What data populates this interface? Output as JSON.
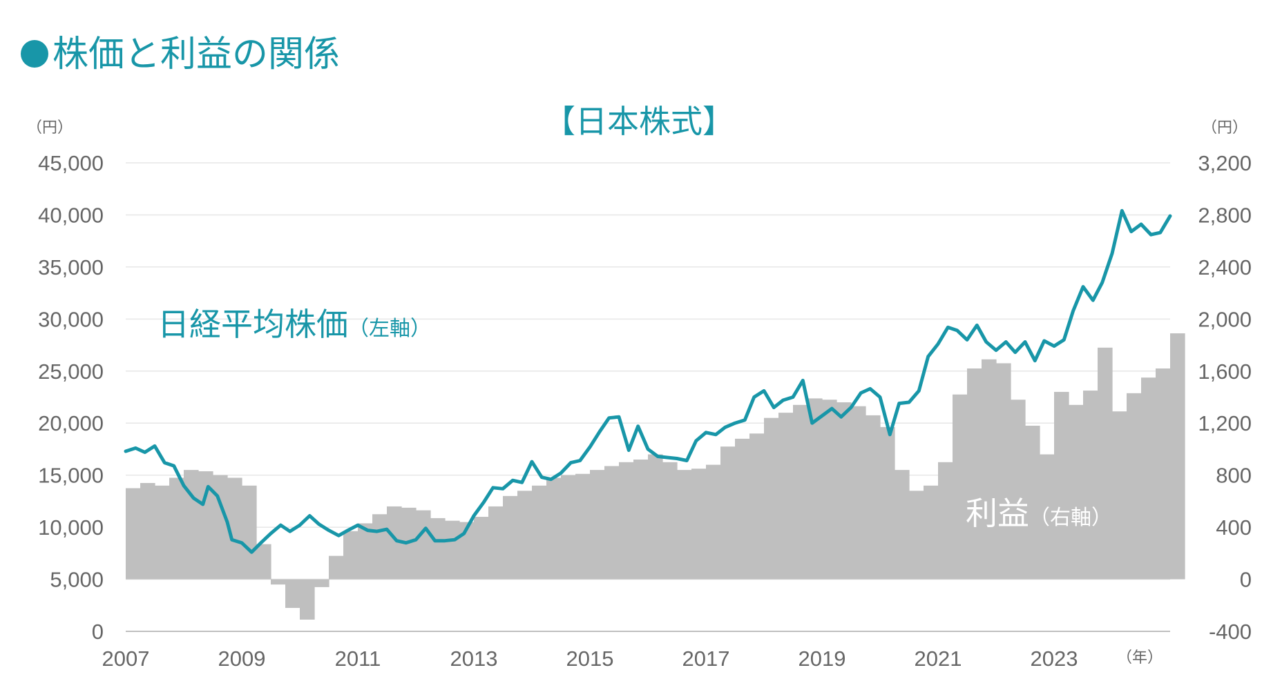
{
  "header": {
    "title": "株価と利益の関係"
  },
  "chart_data": {
    "type": "bar+line",
    "title": "【日本株式】",
    "left_axis": {
      "unit": "（円）",
      "ylim": [
        0,
        45000
      ],
      "ticks": [
        "0",
        "5,000",
        "10,000",
        "15,000",
        "20,000",
        "25,000",
        "30,000",
        "35,000",
        "40,000",
        "45,000"
      ]
    },
    "right_axis": {
      "unit": "（円）",
      "ylim": [
        -400,
        3200
      ],
      "ticks": [
        "-400",
        "0",
        "400",
        "800",
        "1,200",
        "1,600",
        "2,000",
        "2,400",
        "2,800",
        "3,200"
      ]
    },
    "x_axis": {
      "unit": "（年）",
      "range": [
        2007,
        2025
      ],
      "ticks": [
        "2007",
        "2009",
        "2011",
        "2013",
        "2015",
        "2017",
        "2019",
        "2021",
        "2023"
      ]
    },
    "grid": "horizontal",
    "series": [
      {
        "name": "日経平均株価",
        "axis_note": "（左軸）",
        "type": "line",
        "color": "#1896a8",
        "points": [
          [
            2007.0,
            17300
          ],
          [
            2007.17,
            17600
          ],
          [
            2007.33,
            17200
          ],
          [
            2007.5,
            17800
          ],
          [
            2007.67,
            16200
          ],
          [
            2007.83,
            15900
          ],
          [
            2008.0,
            14000
          ],
          [
            2008.17,
            12800
          ],
          [
            2008.33,
            12200
          ],
          [
            2008.42,
            13900
          ],
          [
            2008.58,
            13000
          ],
          [
            2008.75,
            10500
          ],
          [
            2008.83,
            8800
          ],
          [
            2009.0,
            8500
          ],
          [
            2009.17,
            7600
          ],
          [
            2009.33,
            8500
          ],
          [
            2009.5,
            9400
          ],
          [
            2009.67,
            10200
          ],
          [
            2009.83,
            9600
          ],
          [
            2010.0,
            10200
          ],
          [
            2010.17,
            11100
          ],
          [
            2010.33,
            10300
          ],
          [
            2010.5,
            9700
          ],
          [
            2010.67,
            9200
          ],
          [
            2010.83,
            9700
          ],
          [
            2011.0,
            10200
          ],
          [
            2011.17,
            9700
          ],
          [
            2011.33,
            9600
          ],
          [
            2011.5,
            9800
          ],
          [
            2011.67,
            8700
          ],
          [
            2011.83,
            8500
          ],
          [
            2012.0,
            8800
          ],
          [
            2012.17,
            9900
          ],
          [
            2012.33,
            8700
          ],
          [
            2012.5,
            8700
          ],
          [
            2012.67,
            8800
          ],
          [
            2012.83,
            9400
          ],
          [
            2013.0,
            11100
          ],
          [
            2013.17,
            12400
          ],
          [
            2013.33,
            13800
          ],
          [
            2013.5,
            13700
          ],
          [
            2013.67,
            14500
          ],
          [
            2013.83,
            14300
          ],
          [
            2014.0,
            16300
          ],
          [
            2014.17,
            14800
          ],
          [
            2014.33,
            14600
          ],
          [
            2014.5,
            15200
          ],
          [
            2014.67,
            16200
          ],
          [
            2014.83,
            16400
          ],
          [
            2015.0,
            17700
          ],
          [
            2015.17,
            19200
          ],
          [
            2015.33,
            20500
          ],
          [
            2015.5,
            20600
          ],
          [
            2015.67,
            17400
          ],
          [
            2015.83,
            19700
          ],
          [
            2016.0,
            17500
          ],
          [
            2016.17,
            16800
          ],
          [
            2016.33,
            16700
          ],
          [
            2016.5,
            16600
          ],
          [
            2016.67,
            16400
          ],
          [
            2016.83,
            18300
          ],
          [
            2017.0,
            19100
          ],
          [
            2017.17,
            18900
          ],
          [
            2017.33,
            19600
          ],
          [
            2017.5,
            20000
          ],
          [
            2017.67,
            20300
          ],
          [
            2017.83,
            22500
          ],
          [
            2018.0,
            23100
          ],
          [
            2018.17,
            21500
          ],
          [
            2018.33,
            22200
          ],
          [
            2018.5,
            22500
          ],
          [
            2018.67,
            24100
          ],
          [
            2018.83,
            20000
          ],
          [
            2019.0,
            20700
          ],
          [
            2019.17,
            21400
          ],
          [
            2019.33,
            20600
          ],
          [
            2019.5,
            21500
          ],
          [
            2019.67,
            22900
          ],
          [
            2019.83,
            23300
          ],
          [
            2020.0,
            22500
          ],
          [
            2020.17,
            18900
          ],
          [
            2020.33,
            21900
          ],
          [
            2020.5,
            22000
          ],
          [
            2020.67,
            23100
          ],
          [
            2020.83,
            26400
          ],
          [
            2021.0,
            27600
          ],
          [
            2021.17,
            29200
          ],
          [
            2021.33,
            28900
          ],
          [
            2021.5,
            28000
          ],
          [
            2021.67,
            29400
          ],
          [
            2021.83,
            27800
          ],
          [
            2022.0,
            27000
          ],
          [
            2022.17,
            27800
          ],
          [
            2022.33,
            26800
          ],
          [
            2022.5,
            27800
          ],
          [
            2022.67,
            26000
          ],
          [
            2022.83,
            27900
          ],
          [
            2023.0,
            27400
          ],
          [
            2023.17,
            28000
          ],
          [
            2023.33,
            30800
          ],
          [
            2023.5,
            33100
          ],
          [
            2023.67,
            31800
          ],
          [
            2023.83,
            33500
          ],
          [
            2024.0,
            36300
          ],
          [
            2024.17,
            40400
          ],
          [
            2024.33,
            38400
          ],
          [
            2024.5,
            39100
          ],
          [
            2024.67,
            38100
          ],
          [
            2024.83,
            38300
          ],
          [
            2025.0,
            39900
          ]
        ]
      },
      {
        "name": "利益",
        "axis_note": "（右軸）",
        "type": "bar",
        "color": "#bfbfbf",
        "values": [
          [
            2007.0,
            700
          ],
          [
            2007.25,
            740
          ],
          [
            2007.5,
            720
          ],
          [
            2007.75,
            780
          ],
          [
            2008.0,
            840
          ],
          [
            2008.25,
            830
          ],
          [
            2008.5,
            800
          ],
          [
            2008.75,
            780
          ],
          [
            2009.0,
            720
          ],
          [
            2009.25,
            270
          ],
          [
            2009.5,
            -40
          ],
          [
            2009.75,
            -220
          ],
          [
            2010.0,
            -310
          ],
          [
            2010.25,
            -60
          ],
          [
            2010.5,
            180
          ],
          [
            2010.75,
            370
          ],
          [
            2011.0,
            430
          ],
          [
            2011.25,
            500
          ],
          [
            2011.5,
            560
          ],
          [
            2011.75,
            550
          ],
          [
            2012.0,
            530
          ],
          [
            2012.25,
            470
          ],
          [
            2012.5,
            450
          ],
          [
            2012.75,
            440
          ],
          [
            2013.0,
            480
          ],
          [
            2013.25,
            560
          ],
          [
            2013.5,
            640
          ],
          [
            2013.75,
            680
          ],
          [
            2014.0,
            720
          ],
          [
            2014.25,
            780
          ],
          [
            2014.5,
            800
          ],
          [
            2014.75,
            810
          ],
          [
            2015.0,
            840
          ],
          [
            2015.25,
            870
          ],
          [
            2015.5,
            900
          ],
          [
            2015.75,
            920
          ],
          [
            2016.0,
            960
          ],
          [
            2016.25,
            900
          ],
          [
            2016.5,
            840
          ],
          [
            2016.75,
            850
          ],
          [
            2017.0,
            880
          ],
          [
            2017.25,
            1020
          ],
          [
            2017.5,
            1080
          ],
          [
            2017.75,
            1120
          ],
          [
            2018.0,
            1240
          ],
          [
            2018.25,
            1280
          ],
          [
            2018.5,
            1340
          ],
          [
            2018.75,
            1390
          ],
          [
            2019.0,
            1380
          ],
          [
            2019.25,
            1360
          ],
          [
            2019.5,
            1330
          ],
          [
            2019.75,
            1260
          ],
          [
            2020.0,
            1170
          ],
          [
            2020.25,
            840
          ],
          [
            2020.5,
            680
          ],
          [
            2020.75,
            720
          ],
          [
            2021.0,
            900
          ],
          [
            2021.25,
            1420
          ],
          [
            2021.5,
            1620
          ],
          [
            2021.75,
            1690
          ],
          [
            2022.0,
            1660
          ],
          [
            2022.25,
            1380
          ],
          [
            2022.5,
            1180
          ],
          [
            2022.75,
            960
          ],
          [
            2023.0,
            1440
          ],
          [
            2023.25,
            1340
          ],
          [
            2023.5,
            1450
          ],
          [
            2023.75,
            1780
          ],
          [
            2024.0,
            1290
          ],
          [
            2024.25,
            1430
          ],
          [
            2024.5,
            1550
          ],
          [
            2024.75,
            1620
          ],
          [
            2025.0,
            1890
          ]
        ]
      }
    ]
  }
}
